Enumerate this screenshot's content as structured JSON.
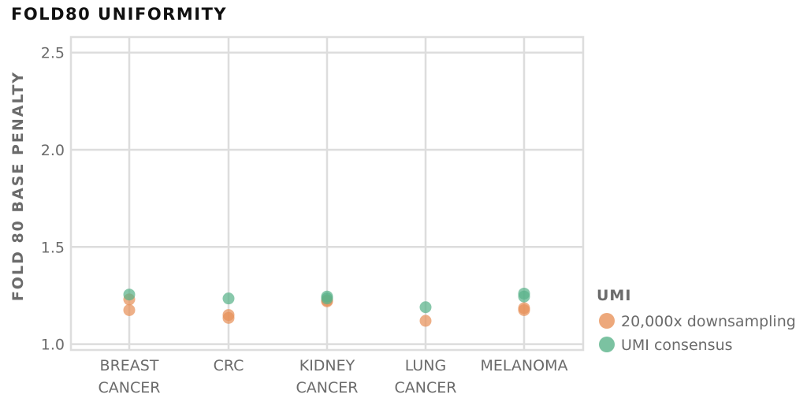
{
  "chart_data": {
    "type": "scatter",
    "title": "FOLD80 UNIFORMITY",
    "xlabel": "",
    "ylabel": "FOLD 80 BASE PENALTY",
    "ylim": [
      0.97,
      2.58
    ],
    "yticks": [
      "1.0",
      "1.5",
      "2.0",
      "2.5"
    ],
    "ytick_values": [
      1.0,
      1.5,
      2.0,
      2.5
    ],
    "categories": [
      {
        "line1": "BREAST",
        "line2": "CANCER"
      },
      {
        "line1": "CRC",
        "line2": ""
      },
      {
        "line1": "KIDNEY",
        "line2": "CANCER"
      },
      {
        "line1": "LUNG",
        "line2": "CANCER"
      },
      {
        "line1": "MELANOMA",
        "line2": ""
      }
    ],
    "grid": true,
    "legend_title": "UMI",
    "legend_position": "right",
    "series": [
      {
        "name": "20,000x downsampling",
        "color": "#e8925a",
        "points": [
          {
            "category": 0,
            "y": 1.23
          },
          {
            "category": 0,
            "y": 1.175
          },
          {
            "category": 1,
            "y": 1.15
          },
          {
            "category": 1,
            "y": 1.135
          },
          {
            "category": 2,
            "y": 1.225
          },
          {
            "category": 2,
            "y": 1.22
          },
          {
            "category": 3,
            "y": 1.12
          },
          {
            "category": 4,
            "y": 1.185
          },
          {
            "category": 4,
            "y": 1.175
          }
        ]
      },
      {
        "name": "UMI consensus",
        "color": "#5ab38a",
        "points": [
          {
            "category": 0,
            "y": 1.255
          },
          {
            "category": 1,
            "y": 1.235
          },
          {
            "category": 2,
            "y": 1.245
          },
          {
            "category": 2,
            "y": 1.235
          },
          {
            "category": 3,
            "y": 1.19
          },
          {
            "category": 4,
            "y": 1.26
          },
          {
            "category": 4,
            "y": 1.245
          }
        ]
      }
    ]
  }
}
